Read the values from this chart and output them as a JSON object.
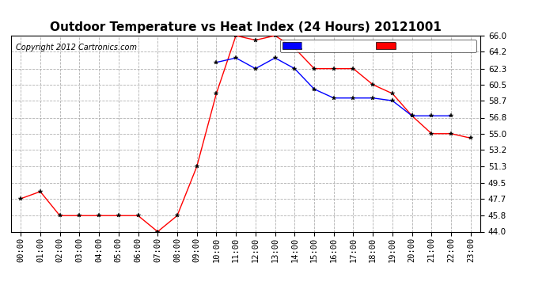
{
  "title": "Outdoor Temperature vs Heat Index (24 Hours) 20121001",
  "copyright": "Copyright 2012 Cartronics.com",
  "hours": [
    "00:00",
    "01:00",
    "02:00",
    "03:00",
    "04:00",
    "05:00",
    "06:00",
    "07:00",
    "08:00",
    "09:00",
    "10:00",
    "11:00",
    "12:00",
    "13:00",
    "14:00",
    "15:00",
    "16:00",
    "17:00",
    "18:00",
    "19:00",
    "20:00",
    "21:00",
    "22:00",
    "23:00"
  ],
  "temperature": [
    47.7,
    48.5,
    45.8,
    45.8,
    45.8,
    45.8,
    45.8,
    44.0,
    45.8,
    51.3,
    59.5,
    66.0,
    65.5,
    66.0,
    64.6,
    62.3,
    62.3,
    62.3,
    60.5,
    59.5,
    57.0,
    55.0,
    55.0,
    54.5
  ],
  "heat_index": [
    null,
    null,
    null,
    null,
    null,
    null,
    null,
    null,
    null,
    null,
    63.0,
    63.5,
    62.3,
    63.5,
    62.3,
    60.0,
    59.0,
    59.0,
    59.0,
    58.7,
    57.0,
    57.0,
    57.0,
    null
  ],
  "ylim": [
    44.0,
    66.0
  ],
  "yticks": [
    44.0,
    45.8,
    47.7,
    49.5,
    51.3,
    53.2,
    55.0,
    56.8,
    58.7,
    60.5,
    62.3,
    64.2,
    66.0
  ],
  "temp_color": "#ff0000",
  "heat_index_color": "#0000ff",
  "background_color": "#ffffff",
  "grid_color": "#b0b0b0",
  "legend_heat_bg": "#0000ff",
  "legend_temp_bg": "#ff0000",
  "title_fontsize": 11,
  "tick_fontsize": 7.5,
  "copyright_fontsize": 7
}
